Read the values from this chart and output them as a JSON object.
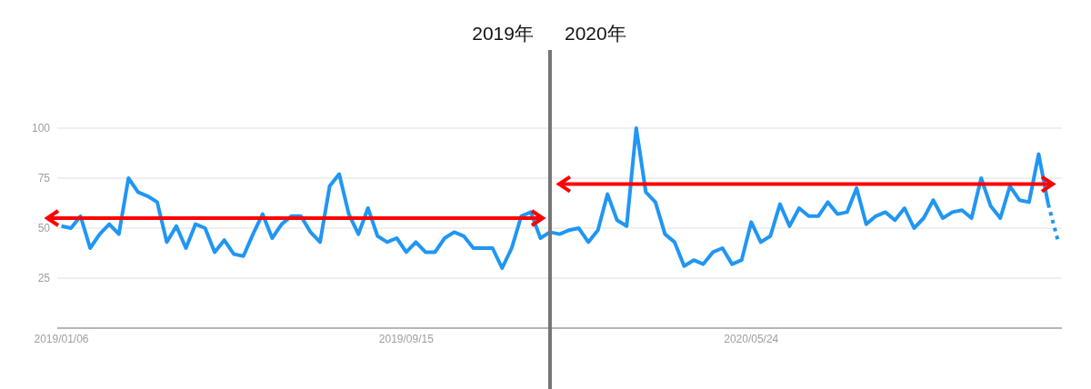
{
  "chart_data": {
    "type": "line",
    "annotations": [
      "2019年",
      "2020年"
    ],
    "x": [
      "2019-01-06",
      "2019-01-13",
      "2019-01-20",
      "2019-01-27",
      "2019-02-03",
      "2019-02-10",
      "2019-02-17",
      "2019-02-24",
      "2019-03-03",
      "2019-03-10",
      "2019-03-17",
      "2019-03-24",
      "2019-03-31",
      "2019-04-07",
      "2019-04-14",
      "2019-04-21",
      "2019-04-28",
      "2019-05-05",
      "2019-05-12",
      "2019-05-19",
      "2019-05-26",
      "2019-06-02",
      "2019-06-09",
      "2019-06-16",
      "2019-06-23",
      "2019-06-30",
      "2019-07-07",
      "2019-07-14",
      "2019-07-21",
      "2019-07-28",
      "2019-08-04",
      "2019-08-11",
      "2019-08-18",
      "2019-08-25",
      "2019-09-01",
      "2019-09-08",
      "2019-09-15",
      "2019-09-22",
      "2019-09-29",
      "2019-10-06",
      "2019-10-13",
      "2019-10-20",
      "2019-10-27",
      "2019-11-03",
      "2019-11-10",
      "2019-11-17",
      "2019-11-24",
      "2019-12-01",
      "2019-12-08",
      "2019-12-15",
      "2019-12-22",
      "2019-12-29",
      "2020-01-05",
      "2020-01-12",
      "2020-01-19",
      "2020-01-26",
      "2020-02-02",
      "2020-02-09",
      "2020-02-16",
      "2020-02-23",
      "2020-03-01",
      "2020-03-08",
      "2020-03-15",
      "2020-03-22",
      "2020-03-29",
      "2020-04-05",
      "2020-04-12",
      "2020-04-19",
      "2020-04-26",
      "2020-05-03",
      "2020-05-10",
      "2020-05-17",
      "2020-05-24",
      "2020-05-31",
      "2020-06-07",
      "2020-06-14",
      "2020-06-21",
      "2020-06-28",
      "2020-07-05",
      "2020-07-12",
      "2020-07-19",
      "2020-07-26",
      "2020-08-02",
      "2020-08-09",
      "2020-08-16",
      "2020-08-23",
      "2020-08-30",
      "2020-09-06",
      "2020-09-13",
      "2020-09-20",
      "2020-09-27",
      "2020-10-04",
      "2020-10-11",
      "2020-10-18",
      "2020-10-25",
      "2020-11-01",
      "2020-11-08",
      "2020-11-15",
      "2020-11-22",
      "2020-11-29",
      "2020-12-06",
      "2020-12-13",
      "2020-12-20",
      "2020-12-27"
    ],
    "series": [
      {
        "color": "#2196f3",
        "line_style": "solid",
        "values": [
          51,
          50,
          56,
          40,
          47,
          52,
          47,
          75,
          68,
          66,
          63,
          43,
          51,
          40,
          52,
          50,
          38,
          44,
          37,
          36,
          47,
          57,
          45,
          52,
          56,
          56,
          48,
          43,
          71,
          77,
          57,
          47,
          60,
          46,
          43,
          45,
          38,
          43,
          38,
          38,
          45,
          48,
          46,
          40,
          40,
          40,
          30,
          40,
          56,
          58,
          45,
          48,
          47,
          49,
          50,
          43,
          49,
          67,
          54,
          51,
          100,
          68,
          63,
          47,
          43,
          31,
          34,
          32,
          38,
          40,
          32,
          34,
          53,
          43,
          46,
          62,
          51,
          60,
          56,
          56,
          63,
          57,
          58,
          70,
          52,
          56,
          58,
          54,
          60,
          50,
          55,
          64,
          55,
          58,
          59,
          55,
          75,
          61,
          55,
          71,
          64,
          63,
          87,
          62
        ]
      },
      {
        "color": "#2196f3",
        "line_style": "dotted",
        "x": [
          "2020-12-27",
          "2021-01-03"
        ],
        "values": [
          62,
          44
        ]
      }
    ],
    "xlim": [
      "2019-01-03",
      "2021-01-06"
    ],
    "xticks": [
      {
        "value": "2019-01-06",
        "label": "2019/01/06"
      },
      {
        "value": "2019-09-15",
        "label": "2019/09/15"
      },
      {
        "value": "2020-05-24",
        "label": "2020/05/24"
      }
    ],
    "ylim": [
      0,
      100
    ],
    "yticks": [
      25,
      50,
      75,
      100
    ],
    "grid": "y",
    "ref_lines": [
      {
        "axis": "x",
        "value": "2019-12-29",
        "color": "#757575"
      },
      {
        "axis": "y",
        "value": 55,
        "color": "#ff0000"
      },
      {
        "axis": "y",
        "value": 72,
        "color": "#ff0000"
      }
    ]
  }
}
